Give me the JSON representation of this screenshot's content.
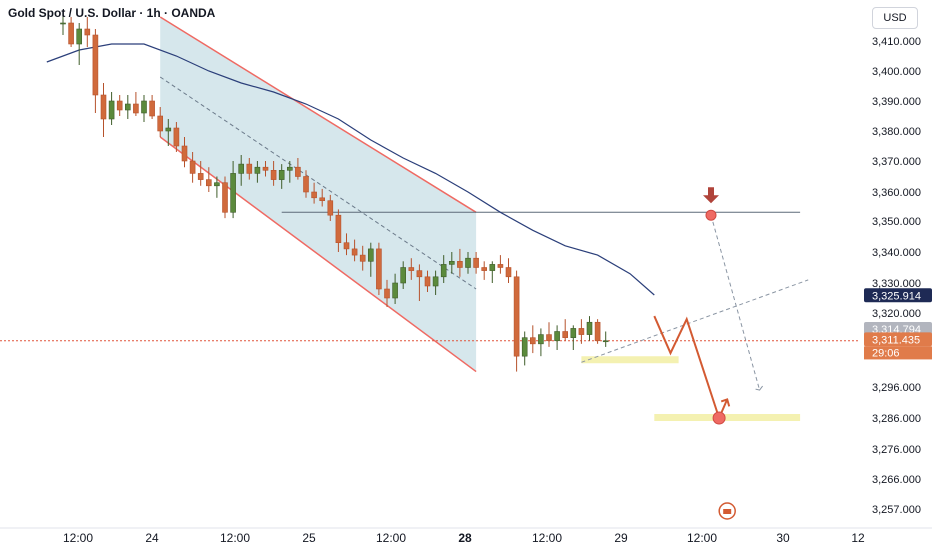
{
  "header": {
    "symbol_title": "Gold Spot / U.S. Dollar · 1h · OANDA",
    "currency_button": "USD"
  },
  "chart_data": {
    "type": "candlestick",
    "title": "Gold Spot / U.S. Dollar · 1h · OANDA",
    "y_axis": {
      "ticks": [
        "3,410.000",
        "3,400.000",
        "3,390.000",
        "3,380.000",
        "3,370.000",
        "3,360.000",
        "3,350.000",
        "3,340.000",
        "3,330.000",
        "3,320.000",
        "3,296.000",
        "3,286.000",
        "3,276.000",
        "3,266.000",
        "3,257.000"
      ],
      "tick_values": [
        3410,
        3400,
        3390,
        3380,
        3370,
        3360,
        3350,
        3340,
        3330,
        3320,
        3296,
        3286,
        3276,
        3266,
        3257
      ]
    },
    "x_axis": {
      "labels": [
        "12:00",
        "24",
        "12:00",
        "25",
        "12:00",
        "28",
        "12:00",
        "29",
        "12:00",
        "30",
        "12"
      ],
      "bold_label": "28"
    },
    "price_tags": [
      {
        "text": "3,325.914",
        "kind": "moving-average",
        "color": "#1e2a55"
      },
      {
        "text": "3,314.794",
        "kind": "trendline",
        "color": "#b2b5be"
      },
      {
        "text": "3,311.435",
        "kind": "last-price",
        "color": "#e07b4a"
      },
      {
        "text": "29:06",
        "kind": "bar-countdown",
        "color": "#e07b4a"
      }
    ],
    "candles": [
      [
        3416,
        3419,
        3412,
        3416
      ],
      [
        3416,
        3418,
        3408,
        3409
      ],
      [
        3409,
        3416,
        3402,
        3414
      ],
      [
        3414,
        3418,
        3408,
        3412
      ],
      [
        3412,
        3414,
        3386,
        3392
      ],
      [
        3392,
        3396,
        3378,
        3384
      ],
      [
        3384,
        3393,
        3382,
        3390
      ],
      [
        3390,
        3392,
        3385,
        3387
      ],
      [
        3387,
        3392,
        3384,
        3389
      ],
      [
        3389,
        3393,
        3385,
        3386
      ],
      [
        3386,
        3392,
        3383,
        3390
      ],
      [
        3390,
        3392,
        3384,
        3385
      ],
      [
        3385,
        3388,
        3378,
        3380
      ],
      [
        3380,
        3384,
        3375,
        3381
      ],
      [
        3381,
        3383,
        3373,
        3375
      ],
      [
        3375,
        3378,
        3368,
        3370
      ],
      [
        3370,
        3373,
        3363,
        3366
      ],
      [
        3366,
        3370,
        3362,
        3364
      ],
      [
        3364,
        3368,
        3360,
        3362
      ],
      [
        3362,
        3365,
        3358,
        3363
      ],
      [
        3363,
        3365,
        3351,
        3353
      ],
      [
        3353,
        3370,
        3351,
        3366
      ],
      [
        3366,
        3372,
        3362,
        3369
      ],
      [
        3369,
        3371,
        3364,
        3366
      ],
      [
        3366,
        3370,
        3363,
        3368
      ],
      [
        3368,
        3370,
        3365,
        3367
      ],
      [
        3367,
        3370,
        3362,
        3364
      ],
      [
        3364,
        3369,
        3361,
        3367
      ],
      [
        3367,
        3370,
        3363,
        3368
      ],
      [
        3368,
        3371,
        3364,
        3365
      ],
      [
        3365,
        3367,
        3358,
        3360
      ],
      [
        3360,
        3363,
        3356,
        3358
      ],
      [
        3358,
        3361,
        3355,
        3357
      ],
      [
        3357,
        3359,
        3350,
        3352
      ],
      [
        3352,
        3354,
        3340,
        3343
      ],
      [
        3343,
        3346,
        3339,
        3341
      ],
      [
        3341,
        3344,
        3337,
        3339
      ],
      [
        3339,
        3342,
        3334,
        3337
      ],
      [
        3337,
        3343,
        3332,
        3341
      ],
      [
        3341,
        3343,
        3326,
        3328
      ],
      [
        3328,
        3331,
        3322,
        3325
      ],
      [
        3325,
        3333,
        3323,
        3330
      ],
      [
        3330,
        3337,
        3328,
        3335
      ],
      [
        3335,
        3338,
        3331,
        3334
      ],
      [
        3334,
        3336,
        3324,
        3332
      ],
      [
        3332,
        3334,
        3327,
        3329
      ],
      [
        3329,
        3334,
        3326,
        3332
      ],
      [
        3332,
        3339,
        3330,
        3336
      ],
      [
        3336,
        3340,
        3333,
        3337
      ],
      [
        3337,
        3341,
        3332,
        3335
      ],
      [
        3335,
        3340,
        3333,
        3338
      ],
      [
        3338,
        3340,
        3333,
        3335
      ],
      [
        3335,
        3337,
        3331,
        3334
      ],
      [
        3334,
        3337,
        3330,
        3336
      ],
      [
        3336,
        3339,
        3333,
        3335
      ],
      [
        3335,
        3338,
        3330,
        3332
      ],
      [
        3332,
        3334,
        3301,
        3306
      ],
      [
        3306,
        3314,
        3303,
        3312
      ],
      [
        3312,
        3316,
        3307,
        3310
      ],
      [
        3310,
        3315,
        3306,
        3313
      ],
      [
        3313,
        3317,
        3309,
        3311
      ],
      [
        3311,
        3316,
        3308,
        3314
      ],
      [
        3314,
        3318,
        3311,
        3312
      ],
      [
        3312,
        3316,
        3308,
        3315
      ],
      [
        3315,
        3318,
        3310,
        3313
      ],
      [
        3313,
        3319,
        3311,
        3317
      ],
      [
        3317,
        3318,
        3310,
        3311
      ],
      [
        3311,
        3314,
        3309,
        3311
      ]
    ],
    "moving_average": [
      [
        -2,
        3403
      ],
      [
        2,
        3407
      ],
      [
        6,
        3409
      ],
      [
        10,
        3409
      ],
      [
        14,
        3405
      ],
      [
        18,
        3400
      ],
      [
        22,
        3396
      ],
      [
        26,
        3393
      ],
      [
        30,
        3389
      ],
      [
        34,
        3384
      ],
      [
        38,
        3377
      ],
      [
        42,
        3371
      ],
      [
        46,
        3366
      ],
      [
        50,
        3360
      ],
      [
        54,
        3353
      ],
      [
        58,
        3347
      ],
      [
        62,
        3342
      ],
      [
        66,
        3339
      ],
      [
        70,
        3333
      ],
      [
        73,
        3326
      ]
    ],
    "annotations": {
      "channel_upper": [
        [
          12,
          3418
        ],
        [
          51,
          3353
        ]
      ],
      "channel_lower": [
        [
          12,
          3378
        ],
        [
          51,
          3301
        ]
      ],
      "channel_mid_dashed": [
        [
          12,
          3398
        ],
        [
          51,
          3328
        ]
      ],
      "horizontal_level": [
        [
          27,
          3353
        ],
        [
          91,
          3353
        ]
      ],
      "rising_dashed_trendline": [
        [
          64,
          3304
        ],
        [
          92,
          3331
        ]
      ],
      "falling_dashed_path": [
        [
          80,
          3352
        ],
        [
          86,
          3295
        ]
      ],
      "support_zone_top": [
        [
          64,
          3305
        ],
        [
          76,
          3305
        ]
      ],
      "support_zone_bottom": [
        [
          73,
          3286
        ],
        [
          91,
          3286
        ]
      ],
      "target_marker_high": [
        80,
        3352
      ],
      "target_marker_low": [
        81,
        3286
      ],
      "forecast_path": [
        [
          73,
          3319
        ],
        [
          75,
          3307
        ],
        [
          77,
          3318
        ],
        [
          81,
          3286
        ],
        [
          82,
          3292
        ]
      ]
    }
  }
}
